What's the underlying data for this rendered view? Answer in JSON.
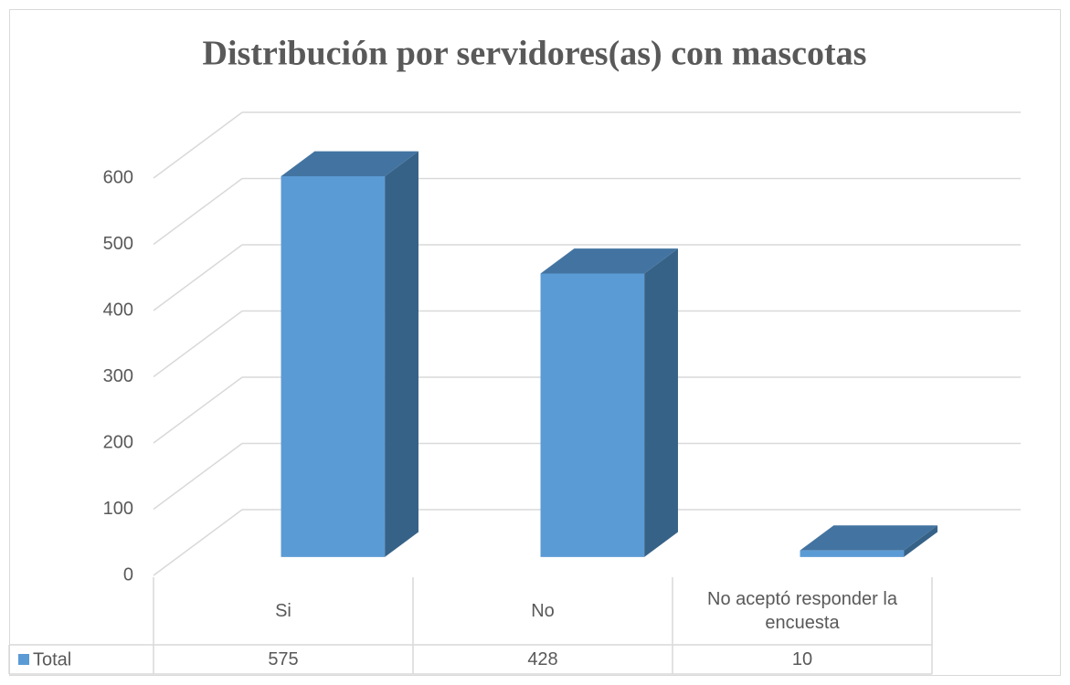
{
  "chart_data": {
    "type": "bar3d",
    "title": "Distribución por servidores(as) con mascotas",
    "categories": [
      "Si",
      "No",
      "No aceptó responder la encuesta"
    ],
    "series": [
      {
        "name": "Total",
        "color": "#5b9bd5",
        "values": [
          575,
          428,
          10
        ]
      }
    ],
    "ylim": [
      0,
      600
    ],
    "yticks": [
      0,
      100,
      200,
      300,
      400,
      500,
      600
    ],
    "grid": true,
    "data_table": true
  }
}
